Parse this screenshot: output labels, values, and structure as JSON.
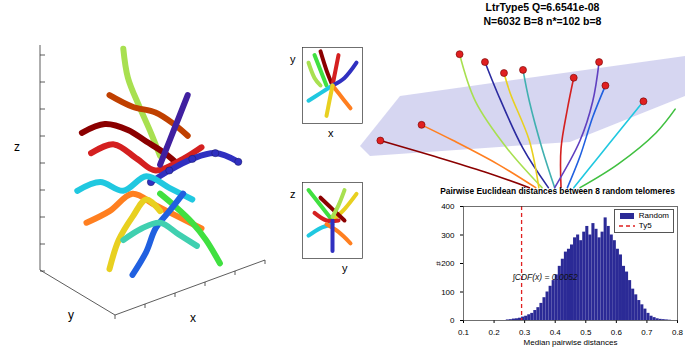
{
  "chart_data": [
    {
      "type": "line",
      "x_label": "x",
      "y_label": "y",
      "z_label": "z",
      "tick_labels": false,
      "xlim": [
        0,
        10
      ],
      "ylim": [
        0,
        10
      ],
      "series": [
        {
          "color": "#a8e050",
          "values": [
            [
              3.6,
              9.2
            ],
            [
              3.8,
              8.2
            ],
            [
              4.3,
              7.2
            ],
            [
              4.8,
              6.3
            ],
            [
              5.2,
              5.5
            ]
          ]
        },
        {
          "color": "#8b0000",
          "values": [
            [
              1.8,
              6.3
            ],
            [
              2.8,
              6.6
            ],
            [
              3.8,
              6.4
            ],
            [
              4.6,
              6.0
            ],
            [
              5.4,
              5.6
            ],
            [
              6.0,
              5.2
            ]
          ]
        },
        {
          "color": "#d42020",
          "values": [
            [
              2.2,
              5.6
            ],
            [
              3.2,
              5.9
            ],
            [
              4.2,
              5.4
            ],
            [
              5.0,
              5.0
            ],
            [
              6.2,
              5.4
            ],
            [
              7.0,
              5.8
            ]
          ]
        },
        {
          "color": "#3030c0",
          "marker": "circle",
          "values": [
            [
              8.6,
              5.3
            ],
            [
              7.6,
              5.6
            ],
            [
              6.6,
              5.4
            ],
            [
              5.6,
              5.0
            ],
            [
              4.8,
              4.6
            ]
          ]
        },
        {
          "color": "#20c8e0",
          "values": [
            [
              1.6,
              4.3
            ],
            [
              2.6,
              4.6
            ],
            [
              3.6,
              4.3
            ],
            [
              4.6,
              4.8
            ],
            [
              5.6,
              4.4
            ],
            [
              6.6,
              4.0
            ]
          ]
        },
        {
          "color": "#ff7f20",
          "values": [
            [
              2.0,
              3.2
            ],
            [
              3.0,
              3.6
            ],
            [
              4.0,
              4.2
            ],
            [
              5.0,
              3.8
            ],
            [
              6.0,
              3.4
            ],
            [
              7.0,
              3.0
            ]
          ]
        },
        {
          "color": "#e8d020",
          "values": [
            [
              3.0,
              1.6
            ],
            [
              3.4,
              2.6
            ],
            [
              4.0,
              3.4
            ],
            [
              4.6,
              4.0
            ],
            [
              5.2,
              3.6
            ]
          ]
        },
        {
          "color": "#40e040",
          "values": [
            [
              7.8,
              1.8
            ],
            [
              7.2,
              2.6
            ],
            [
              6.6,
              3.2
            ],
            [
              5.8,
              3.8
            ],
            [
              5.2,
              4.2
            ]
          ]
        },
        {
          "color": "#2060e0",
          "values": [
            [
              4.0,
              1.4
            ],
            [
              4.6,
              2.2
            ],
            [
              5.0,
              3.0
            ],
            [
              5.6,
              3.6
            ],
            [
              6.2,
              4.2
            ]
          ]
        },
        {
          "color": "#40d0b0",
          "values": [
            [
              6.8,
              2.4
            ],
            [
              6.0,
              2.8
            ],
            [
              5.2,
              3.2
            ],
            [
              4.4,
              3.0
            ],
            [
              3.6,
              2.6
            ]
          ]
        },
        {
          "color": "#c04000",
          "values": [
            [
              3.0,
              7.6
            ],
            [
              4.0,
              7.2
            ],
            [
              5.0,
              7.0
            ],
            [
              5.8,
              6.6
            ],
            [
              6.4,
              6.2
            ]
          ]
        },
        {
          "color": "#4020a0",
          "values": [
            [
              6.4,
              7.6
            ],
            [
              6.0,
              6.8
            ],
            [
              5.6,
              6.0
            ],
            [
              5.2,
              5.2
            ]
          ]
        }
      ]
    },
    {
      "type": "line",
      "x_label": "x",
      "y_label": "y",
      "tick_labels": false,
      "xlim": [
        0,
        10
      ],
      "ylim": [
        0,
        10
      ],
      "series": [
        {
          "color": "#40e040",
          "values": [
            [
              2,
              9
            ],
            [
              3,
              7
            ],
            [
              4,
              5
            ]
          ]
        },
        {
          "color": "#a8e050",
          "values": [
            [
              1,
              8
            ],
            [
              2,
              6
            ],
            [
              3,
              5
            ]
          ]
        },
        {
          "color": "#8b0000",
          "values": [
            [
              3,
              9.5
            ],
            [
              4,
              7
            ],
            [
              5,
              5
            ]
          ]
        },
        {
          "color": "#d42020",
          "values": [
            [
              6,
              9
            ],
            [
              5.5,
              7
            ],
            [
              5,
              5
            ]
          ]
        },
        {
          "color": "#3030c0",
          "values": [
            [
              9,
              8
            ],
            [
              7,
              6
            ],
            [
              5,
              5
            ]
          ]
        },
        {
          "color": "#20c8e0",
          "values": [
            [
              1,
              3
            ],
            [
              3,
              4
            ],
            [
              5,
              5
            ]
          ]
        },
        {
          "color": "#ff7f20",
          "values": [
            [
              8,
              2
            ],
            [
              6,
              4
            ],
            [
              5,
              5
            ]
          ]
        },
        {
          "color": "#e8d020",
          "values": [
            [
              4,
              1
            ],
            [
              4.5,
              3
            ],
            [
              5,
              5
            ]
          ]
        }
      ]
    },
    {
      "type": "line",
      "x_label": "y",
      "y_label": "z",
      "tick_labels": false,
      "xlim": [
        0,
        10
      ],
      "ylim": [
        0,
        10
      ],
      "series": [
        {
          "color": "#40e040",
          "values": [
            [
              1,
              9
            ],
            [
              3,
              7
            ],
            [
              5,
              5
            ]
          ]
        },
        {
          "color": "#e8d020",
          "values": [
            [
              9,
              8.5
            ],
            [
              7,
              6.5
            ],
            [
              5,
              5
            ]
          ]
        },
        {
          "color": "#d42020",
          "values": [
            [
              2,
              6
            ],
            [
              4,
              5
            ],
            [
              6,
              5
            ]
          ]
        },
        {
          "color": "#8b0000",
          "values": [
            [
              3,
              8
            ],
            [
              5,
              6.5
            ],
            [
              7,
              5
            ]
          ]
        },
        {
          "color": "#20c8e0",
          "values": [
            [
              1,
              3
            ],
            [
              3,
              4
            ],
            [
              5,
              4.5
            ]
          ]
        },
        {
          "color": "#ff7f20",
          "values": [
            [
              8,
              2
            ],
            [
              6,
              3.5
            ],
            [
              4,
              4.5
            ]
          ]
        },
        {
          "color": "#3030c0",
          "values": [
            [
              5,
              1
            ],
            [
              5,
              3
            ],
            [
              5,
              5
            ]
          ]
        },
        {
          "color": "#a8e050",
          "values": [
            [
              7,
              9
            ],
            [
              6,
              7
            ],
            [
              5,
              5.5
            ]
          ]
        }
      ]
    },
    {
      "type": "line",
      "title": "LtrType5 Q=6.6541e-08",
      "subtitle": "N=6032 B=8 n*=102 b=8",
      "tick_labels": false,
      "xlim": [
        0,
        10
      ],
      "ylim": [
        0,
        10
      ],
      "series": [
        {
          "color": "#a8e050",
          "values": [
            [
              5.6,
              0.5
            ],
            [
              4.5,
              3
            ],
            [
              3.5,
              6
            ],
            [
              3,
              9
            ]
          ]
        },
        {
          "color": "#2a2aa0",
          "values": [
            [
              5.8,
              0.5
            ],
            [
              5,
              3
            ],
            [
              4.2,
              6.5
            ],
            [
              3.8,
              8.5
            ]
          ]
        },
        {
          "color": "#40b0b0",
          "values": [
            [
              6,
              0.5
            ],
            [
              5.6,
              3
            ],
            [
              5.2,
              6
            ],
            [
              5,
              8
            ]
          ]
        },
        {
          "color": "#d42020",
          "values": [
            [
              6.2,
              0.5
            ],
            [
              6.2,
              3
            ],
            [
              6.4,
              5.5
            ],
            [
              6.6,
              7.5
            ]
          ]
        },
        {
          "color": "#2060e0",
          "values": [
            [
              6.4,
              0.5
            ],
            [
              6.8,
              2.5
            ],
            [
              7.2,
              5
            ],
            [
              7.6,
              7
            ]
          ]
        },
        {
          "color": "#20c8e0",
          "values": [
            [
              6.6,
              0.5
            ],
            [
              7.4,
              2.5
            ],
            [
              8.2,
              4.5
            ],
            [
              8.8,
              6
            ]
          ]
        },
        {
          "color": "#40c040",
          "values": [
            [
              6.8,
              0.5
            ],
            [
              8,
              2
            ],
            [
              9.2,
              4
            ],
            [
              9.8,
              5.5
            ]
          ]
        },
        {
          "color": "#ff7f20",
          "values": [
            [
              5.4,
              0.5
            ],
            [
              4.2,
              2
            ],
            [
              2.8,
              3.5
            ],
            [
              1.8,
              4.5
            ]
          ]
        },
        {
          "color": "#8b0000",
          "values": [
            [
              5.2,
              0.5
            ],
            [
              3.8,
              1.5
            ],
            [
              2.2,
              2.5
            ],
            [
              0.5,
              3.5
            ]
          ]
        },
        {
          "color": "#6040c0",
          "values": [
            [
              6,
              0.5
            ],
            [
              6.8,
              3.5
            ],
            [
              7.2,
              6
            ],
            [
              7.4,
              8.5
            ]
          ]
        },
        {
          "color": "#e8d020",
          "values": [
            [
              5.5,
              0.5
            ],
            [
              5.2,
              3.5
            ],
            [
              4.6,
              6.5
            ],
            [
              4.4,
              7.8
            ]
          ]
        },
        {
          "type": "scatter",
          "color": "#e02020",
          "values": [
            [
              3,
              9
            ],
            [
              3.8,
              8.5
            ],
            [
              5,
              8
            ],
            [
              6.6,
              7.5
            ],
            [
              7.6,
              7
            ],
            [
              1.8,
              4.5
            ],
            [
              0.5,
              3.5
            ],
            [
              7.4,
              8.5
            ],
            [
              4.4,
              7.8
            ],
            [
              8.8,
              6
            ]
          ]
        }
      ]
    },
    {
      "type": "histogram",
      "title": "Pairwise Euclidean distances between 8 random telomeres",
      "x_label": "Median pairwise distances",
      "y_label": "#",
      "xlim": [
        0.1,
        0.8
      ],
      "ylim": [
        0,
        400
      ],
      "xticks": [
        0.1,
        0.2,
        0.3,
        0.4,
        0.5,
        0.6,
        0.7,
        0.8
      ],
      "yticks": [
        0,
        100,
        200,
        300,
        400
      ],
      "legend": "top-right",
      "bins": [
        0.1,
        0.11,
        0.12,
        0.13,
        0.14,
        0.15,
        0.16,
        0.17,
        0.18,
        0.19,
        0.2,
        0.21,
        0.22,
        0.23,
        0.24,
        0.25,
        0.26,
        0.27,
        0.28,
        0.29,
        0.3,
        0.31,
        0.32,
        0.33,
        0.34,
        0.35,
        0.36,
        0.37,
        0.38,
        0.39,
        0.4,
        0.41,
        0.42,
        0.43,
        0.44,
        0.45,
        0.46,
        0.47,
        0.48,
        0.49,
        0.5,
        0.51,
        0.52,
        0.53,
        0.54,
        0.55,
        0.56,
        0.57,
        0.58,
        0.59,
        0.6,
        0.61,
        0.62,
        0.63,
        0.64,
        0.65,
        0.66,
        0.67,
        0.68,
        0.69,
        0.7,
        0.71,
        0.72,
        0.73,
        0.74,
        0.75,
        0.76,
        0.77,
        0.78,
        0.79,
        0.8
      ],
      "counts": [
        0,
        0,
        0,
        0,
        0,
        0,
        0,
        0,
        0,
        0,
        0,
        0,
        0,
        0,
        2,
        3,
        5,
        6,
        8,
        12,
        15,
        20,
        25,
        35,
        45,
        60,
        80,
        100,
        120,
        140,
        160,
        190,
        215,
        240,
        250,
        265,
        290,
        300,
        280,
        310,
        330,
        300,
        340,
        320,
        290,
        310,
        360,
        330,
        300,
        280,
        250,
        230,
        190,
        170,
        140,
        110,
        90,
        70,
        55,
        40,
        25,
        15,
        10,
        6,
        4,
        3,
        2,
        1,
        0,
        0
      ],
      "series": [
        {
          "name": "Random",
          "type": "bar",
          "color": "#2b2a96"
        },
        {
          "name": "Ty5",
          "type": "rule",
          "line_style": "dashed",
          "color": "#e02020",
          "values": [
            0.29
          ]
        }
      ],
      "annotations": [
        {
          "text": "∫CDF(x) = 0.0052",
          "x": 0.26,
          "y": 150
        }
      ]
    }
  ]
}
